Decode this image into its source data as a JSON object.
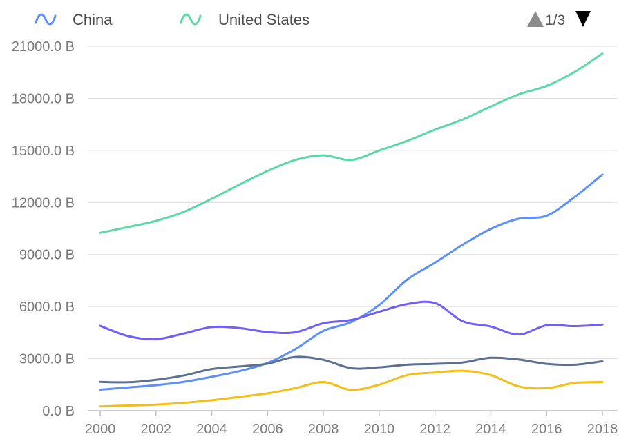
{
  "chart_data": {
    "type": "line",
    "smooth": true,
    "title": "",
    "xlabel": "",
    "ylabel": "",
    "x": [
      2000,
      2001,
      2002,
      2003,
      2004,
      2005,
      2006,
      2007,
      2008,
      2009,
      2010,
      2011,
      2012,
      2013,
      2014,
      2015,
      2016,
      2017,
      2018
    ],
    "xticks": [
      "2000",
      "2002",
      "2004",
      "2006",
      "2008",
      "2010",
      "2012",
      "2014",
      "2016",
      "2018"
    ],
    "xlim": [
      2000,
      2018
    ],
    "ylim": [
      0,
      21000
    ],
    "yticks": [
      0,
      3000,
      6000,
      9000,
      12000,
      15000,
      18000,
      21000
    ],
    "ytick_labels": [
      "0.0 B",
      "3000.0 B",
      "6000.0 B",
      "9000.0 B",
      "12000.0 B",
      "15000.0 B",
      "18000.0 B",
      "21000.0 B"
    ],
    "grid": "horizontal",
    "legend": {
      "position": "top",
      "items": [
        {
          "name": "China",
          "color": "#5b8ff9"
        },
        {
          "name": "United States",
          "color": "#5ad8a6"
        }
      ],
      "pager": {
        "label": "1/3",
        "prev_color": "#8c8c8c",
        "next_color": "#000000"
      }
    },
    "series": [
      {
        "name": "China",
        "color": "#5b8ff9",
        "values": [
          1211,
          1339,
          1471,
          1660,
          1955,
          2286,
          2752,
          3552,
          4598,
          5110,
          6087,
          7552,
          8532,
          9570,
          10476,
          11062,
          11233,
          12310,
          13608
        ]
      },
      {
        "name": "United States",
        "color": "#5ad8a6",
        "values": [
          10252,
          10582,
          10936,
          11458,
          12214,
          13037,
          13815,
          14452,
          14713,
          14449,
          14992,
          15543,
          16197,
          16785,
          17527,
          18225,
          18715,
          19519,
          20580
        ]
      },
      {
        "color": "#5d7092",
        "values": [
          1661,
          1640,
          1780,
          2030,
          2400,
          2550,
          2710,
          3100,
          2930,
          2450,
          2500,
          2650,
          2700,
          2780,
          3050,
          2950,
          2700,
          2650,
          2850
        ]
      },
      {
        "color": "#f6bd16",
        "values": [
          250,
          300,
          350,
          450,
          600,
          800,
          1000,
          1300,
          1650,
          1200,
          1500,
          2050,
          2200,
          2300,
          2050,
          1400,
          1300,
          1600,
          1650
        ]
      },
      {
        "color": "#6f5ef9",
        "values": [
          4890,
          4300,
          4120,
          4450,
          4820,
          4760,
          4530,
          4520,
          5040,
          5230,
          5700,
          6140,
          6200,
          5150,
          4850,
          4390,
          4920,
          4870,
          4960
        ]
      }
    ]
  }
}
